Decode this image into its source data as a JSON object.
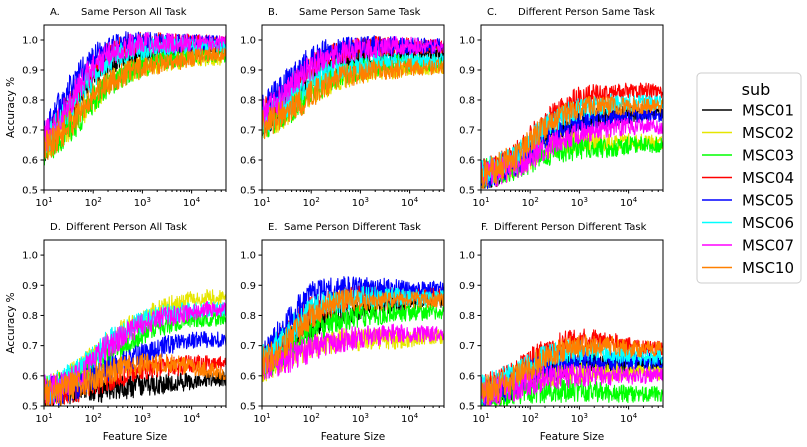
{
  "legend": {
    "title": "sub",
    "entries": [
      {
        "name": "MSC01",
        "color": "#000000"
      },
      {
        "name": "MSC02",
        "color": "#e6e600"
      },
      {
        "name": "MSC03",
        "color": "#00ff00"
      },
      {
        "name": "MSC04",
        "color": "#ff0000"
      },
      {
        "name": "MSC05",
        "color": "#0000ff"
      },
      {
        "name": "MSC06",
        "color": "#00ffff"
      },
      {
        "name": "MSC07",
        "color": "#ff00ff"
      },
      {
        "name": "MSC10",
        "color": "#ff8000"
      }
    ]
  },
  "chart_data": [
    {
      "type": "line",
      "letter": "A.",
      "title": "Same Person All Task",
      "xlabel": "",
      "ylabel": "Accuracy %",
      "xscale": "log",
      "xlim": [
        10,
        50000
      ],
      "ylim": [
        0.5,
        1.05
      ],
      "xticks": [
        "10^1",
        "10^2",
        "10^3",
        "10^4"
      ],
      "yticks": [
        "0.5",
        "0.6",
        "0.7",
        "0.8",
        "0.9",
        "1.0"
      ],
      "x_points": [
        10,
        20,
        50,
        100,
        200,
        500,
        1000,
        2000,
        5000,
        10000,
        20000,
        50000
      ],
      "series": [
        {
          "name": "MSC01",
          "values": [
            0.64,
            0.7,
            0.8,
            0.87,
            0.92,
            0.95,
            0.96,
            0.97,
            0.97,
            0.97,
            0.97,
            0.97
          ]
        },
        {
          "name": "MSC02",
          "values": [
            0.64,
            0.68,
            0.74,
            0.8,
            0.85,
            0.89,
            0.91,
            0.92,
            0.93,
            0.94,
            0.94,
            0.94
          ]
        },
        {
          "name": "MSC03",
          "values": [
            0.63,
            0.67,
            0.73,
            0.8,
            0.85,
            0.89,
            0.91,
            0.93,
            0.94,
            0.95,
            0.95,
            0.95
          ]
        },
        {
          "name": "MSC04",
          "values": [
            0.66,
            0.73,
            0.83,
            0.9,
            0.95,
            0.98,
            0.99,
            0.99,
            0.99,
            0.99,
            0.99,
            0.99
          ]
        },
        {
          "name": "MSC05",
          "values": [
            0.7,
            0.78,
            0.88,
            0.94,
            0.97,
            0.99,
            0.99,
            0.99,
            0.99,
            0.99,
            0.99,
            0.99
          ]
        },
        {
          "name": "MSC06",
          "values": [
            0.66,
            0.72,
            0.82,
            0.88,
            0.93,
            0.96,
            0.97,
            0.98,
            0.98,
            0.98,
            0.98,
            0.98
          ]
        },
        {
          "name": "MSC07",
          "values": [
            0.67,
            0.74,
            0.84,
            0.91,
            0.95,
            0.98,
            0.99,
            0.99,
            0.99,
            0.99,
            0.99,
            0.99
          ]
        },
        {
          "name": "MSC10",
          "values": [
            0.64,
            0.68,
            0.75,
            0.82,
            0.86,
            0.89,
            0.91,
            0.92,
            0.93,
            0.94,
            0.95,
            0.95
          ]
        }
      ]
    },
    {
      "type": "line",
      "letter": "B.",
      "title": "Same Person Same Task",
      "xlabel": "",
      "ylabel": "",
      "xscale": "log",
      "xlim": [
        10,
        50000
      ],
      "ylim": [
        0.5,
        1.05
      ],
      "xticks": [
        "10^1",
        "10^2",
        "10^3",
        "10^4"
      ],
      "yticks": [
        "0.5",
        "0.6",
        "0.7",
        "0.8",
        "0.9",
        "1.0"
      ],
      "x_points": [
        10,
        20,
        50,
        100,
        200,
        500,
        1000,
        2000,
        5000,
        10000,
        20000,
        50000
      ],
      "series": [
        {
          "name": "MSC01",
          "values": [
            0.73,
            0.76,
            0.82,
            0.87,
            0.9,
            0.93,
            0.94,
            0.95,
            0.95,
            0.95,
            0.95,
            0.95
          ]
        },
        {
          "name": "MSC02",
          "values": [
            0.72,
            0.74,
            0.78,
            0.82,
            0.85,
            0.88,
            0.89,
            0.9,
            0.9,
            0.91,
            0.91,
            0.91
          ]
        },
        {
          "name": "MSC03",
          "values": [
            0.72,
            0.74,
            0.78,
            0.82,
            0.86,
            0.89,
            0.9,
            0.91,
            0.92,
            0.92,
            0.92,
            0.92
          ]
        },
        {
          "name": "MSC04",
          "values": [
            0.75,
            0.79,
            0.86,
            0.91,
            0.94,
            0.96,
            0.97,
            0.98,
            0.98,
            0.98,
            0.98,
            0.98
          ]
        },
        {
          "name": "MSC05",
          "values": [
            0.77,
            0.82,
            0.89,
            0.94,
            0.96,
            0.97,
            0.98,
            0.98,
            0.98,
            0.98,
            0.98,
            0.98
          ]
        },
        {
          "name": "MSC06",
          "values": [
            0.73,
            0.76,
            0.82,
            0.86,
            0.89,
            0.91,
            0.92,
            0.93,
            0.93,
            0.93,
            0.93,
            0.93
          ]
        },
        {
          "name": "MSC07",
          "values": [
            0.75,
            0.79,
            0.86,
            0.91,
            0.94,
            0.96,
            0.97,
            0.97,
            0.98,
            0.98,
            0.98,
            0.98
          ]
        },
        {
          "name": "MSC10",
          "values": [
            0.72,
            0.74,
            0.78,
            0.82,
            0.85,
            0.88,
            0.89,
            0.9,
            0.9,
            0.91,
            0.91,
            0.91
          ]
        }
      ]
    },
    {
      "type": "line",
      "letter": "C.",
      "title": "Different Person Same Task",
      "xlabel": "",
      "ylabel": "",
      "xscale": "log",
      "xlim": [
        10,
        50000
      ],
      "ylim": [
        0.5,
        1.05
      ],
      "xticks": [
        "10^1",
        "10^2",
        "10^3",
        "10^4"
      ],
      "yticks": [
        "0.5",
        "0.6",
        "0.7",
        "0.8",
        "0.9",
        "1.0"
      ],
      "x_points": [
        10,
        20,
        50,
        100,
        200,
        500,
        1000,
        2000,
        5000,
        10000,
        20000,
        50000
      ],
      "series": [
        {
          "name": "MSC01",
          "values": [
            0.55,
            0.56,
            0.59,
            0.63,
            0.67,
            0.71,
            0.73,
            0.74,
            0.75,
            0.75,
            0.76,
            0.76
          ]
        },
        {
          "name": "MSC02",
          "values": [
            0.55,
            0.56,
            0.58,
            0.61,
            0.64,
            0.66,
            0.66,
            0.66,
            0.66,
            0.66,
            0.66,
            0.66
          ]
        },
        {
          "name": "MSC03",
          "values": [
            0.55,
            0.56,
            0.58,
            0.6,
            0.62,
            0.63,
            0.64,
            0.64,
            0.64,
            0.65,
            0.65,
            0.65
          ]
        },
        {
          "name": "MSC04",
          "values": [
            0.55,
            0.57,
            0.61,
            0.67,
            0.73,
            0.78,
            0.81,
            0.82,
            0.82,
            0.83,
            0.83,
            0.83
          ]
        },
        {
          "name": "MSC05",
          "values": [
            0.55,
            0.56,
            0.59,
            0.63,
            0.67,
            0.7,
            0.72,
            0.73,
            0.74,
            0.74,
            0.75,
            0.75
          ]
        },
        {
          "name": "MSC06",
          "values": [
            0.55,
            0.57,
            0.6,
            0.66,
            0.71,
            0.75,
            0.77,
            0.78,
            0.79,
            0.79,
            0.79,
            0.79
          ]
        },
        {
          "name": "MSC07",
          "values": [
            0.55,
            0.56,
            0.58,
            0.61,
            0.64,
            0.67,
            0.69,
            0.7,
            0.71,
            0.71,
            0.71,
            0.71
          ]
        },
        {
          "name": "MSC10",
          "values": [
            0.55,
            0.57,
            0.61,
            0.66,
            0.71,
            0.75,
            0.77,
            0.78,
            0.78,
            0.78,
            0.78,
            0.78
          ]
        }
      ]
    },
    {
      "type": "line",
      "letter": "D.",
      "title": "Different Person All Task",
      "xlabel": "Feature Size",
      "ylabel": "Accuracy %",
      "xscale": "log",
      "xlim": [
        10,
        50000
      ],
      "ylim": [
        0.5,
        1.05
      ],
      "xticks": [
        "10^1",
        "10^2",
        "10^3",
        "10^4"
      ],
      "yticks": [
        "0.5",
        "0.6",
        "0.7",
        "0.8",
        "0.9",
        "1.0"
      ],
      "x_points": [
        10,
        20,
        50,
        100,
        200,
        500,
        1000,
        2000,
        5000,
        10000,
        20000,
        50000
      ],
      "series": [
        {
          "name": "MSC01",
          "values": [
            0.54,
            0.54,
            0.55,
            0.55,
            0.56,
            0.56,
            0.57,
            0.57,
            0.58,
            0.58,
            0.59,
            0.59
          ]
        },
        {
          "name": "MSC02",
          "values": [
            0.55,
            0.57,
            0.61,
            0.66,
            0.71,
            0.76,
            0.79,
            0.82,
            0.84,
            0.85,
            0.86,
            0.86
          ]
        },
        {
          "name": "MSC03",
          "values": [
            0.55,
            0.56,
            0.59,
            0.63,
            0.67,
            0.71,
            0.74,
            0.76,
            0.78,
            0.79,
            0.79,
            0.79
          ]
        },
        {
          "name": "MSC04",
          "values": [
            0.54,
            0.55,
            0.56,
            0.58,
            0.59,
            0.61,
            0.62,
            0.63,
            0.63,
            0.64,
            0.64,
            0.64
          ]
        },
        {
          "name": "MSC05",
          "values": [
            0.55,
            0.55,
            0.57,
            0.6,
            0.62,
            0.65,
            0.67,
            0.69,
            0.71,
            0.72,
            0.72,
            0.72
          ]
        },
        {
          "name": "MSC06",
          "values": [
            0.55,
            0.57,
            0.61,
            0.66,
            0.71,
            0.75,
            0.78,
            0.8,
            0.81,
            0.82,
            0.82,
            0.82
          ]
        },
        {
          "name": "MSC07",
          "values": [
            0.55,
            0.56,
            0.6,
            0.65,
            0.7,
            0.74,
            0.77,
            0.79,
            0.8,
            0.81,
            0.82,
            0.82
          ]
        },
        {
          "name": "MSC10",
          "values": [
            0.54,
            0.55,
            0.57,
            0.59,
            0.61,
            0.63,
            0.64,
            0.64,
            0.64,
            0.63,
            0.62,
            0.61
          ]
        }
      ]
    },
    {
      "type": "line",
      "letter": "E.",
      "title": "Same Person Different Task",
      "xlabel": "Feature Size",
      "ylabel": "",
      "xscale": "log",
      "xlim": [
        10,
        50000
      ],
      "ylim": [
        0.5,
        1.05
      ],
      "xticks": [
        "10^1",
        "10^2",
        "10^3",
        "10^4"
      ],
      "yticks": [
        "0.5",
        "0.6",
        "0.7",
        "0.8",
        "0.9",
        "1.0"
      ],
      "x_points": [
        10,
        20,
        50,
        100,
        200,
        500,
        1000,
        2000,
        5000,
        10000,
        20000,
        50000
      ],
      "series": [
        {
          "name": "MSC01",
          "values": [
            0.64,
            0.68,
            0.73,
            0.77,
            0.79,
            0.81,
            0.82,
            0.83,
            0.84,
            0.84,
            0.85,
            0.85
          ]
        },
        {
          "name": "MSC02",
          "values": [
            0.63,
            0.65,
            0.68,
            0.7,
            0.71,
            0.72,
            0.72,
            0.72,
            0.72,
            0.72,
            0.73,
            0.73
          ]
        },
        {
          "name": "MSC03",
          "values": [
            0.63,
            0.66,
            0.71,
            0.75,
            0.77,
            0.79,
            0.8,
            0.8,
            0.81,
            0.81,
            0.81,
            0.81
          ]
        },
        {
          "name": "MSC04",
          "values": [
            0.65,
            0.7,
            0.77,
            0.82,
            0.84,
            0.86,
            0.87,
            0.87,
            0.87,
            0.87,
            0.87,
            0.87
          ]
        },
        {
          "name": "MSC05",
          "values": [
            0.66,
            0.73,
            0.82,
            0.87,
            0.88,
            0.89,
            0.89,
            0.89,
            0.89,
            0.89,
            0.89,
            0.89
          ]
        },
        {
          "name": "MSC06",
          "values": [
            0.65,
            0.7,
            0.77,
            0.82,
            0.84,
            0.85,
            0.86,
            0.86,
            0.86,
            0.86,
            0.86,
            0.86
          ]
        },
        {
          "name": "MSC07",
          "values": [
            0.62,
            0.64,
            0.67,
            0.69,
            0.71,
            0.72,
            0.73,
            0.73,
            0.74,
            0.74,
            0.74,
            0.74
          ]
        },
        {
          "name": "MSC10",
          "values": [
            0.64,
            0.68,
            0.75,
            0.8,
            0.83,
            0.85,
            0.85,
            0.85,
            0.85,
            0.85,
            0.85,
            0.85
          ]
        }
      ]
    },
    {
      "type": "line",
      "letter": "F.",
      "title": "Different Person Different Task",
      "xlabel": "Feature Size",
      "ylabel": "",
      "xscale": "log",
      "xlim": [
        10,
        50000
      ],
      "ylim": [
        0.5,
        1.05
      ],
      "xticks": [
        "10^1",
        "10^2",
        "10^3",
        "10^4"
      ],
      "yticks": [
        "0.5",
        "0.6",
        "0.7",
        "0.8",
        "0.9",
        "1.0"
      ],
      "x_points": [
        10,
        20,
        50,
        100,
        200,
        500,
        1000,
        2000,
        5000,
        10000,
        20000,
        50000
      ],
      "series": [
        {
          "name": "MSC01",
          "values": [
            0.54,
            0.55,
            0.57,
            0.59,
            0.61,
            0.63,
            0.64,
            0.64,
            0.64,
            0.64,
            0.64,
            0.64
          ]
        },
        {
          "name": "MSC02",
          "values": [
            0.54,
            0.55,
            0.57,
            0.59,
            0.6,
            0.61,
            0.61,
            0.61,
            0.61,
            0.61,
            0.61,
            0.61
          ]
        },
        {
          "name": "MSC03",
          "values": [
            0.54,
            0.54,
            0.55,
            0.55,
            0.55,
            0.55,
            0.55,
            0.55,
            0.54,
            0.54,
            0.54,
            0.54
          ]
        },
        {
          "name": "MSC04",
          "values": [
            0.55,
            0.57,
            0.61,
            0.65,
            0.68,
            0.71,
            0.72,
            0.72,
            0.71,
            0.7,
            0.69,
            0.69
          ]
        },
        {
          "name": "MSC05",
          "values": [
            0.54,
            0.55,
            0.58,
            0.61,
            0.63,
            0.65,
            0.66,
            0.66,
            0.65,
            0.65,
            0.65,
            0.65
          ]
        },
        {
          "name": "MSC06",
          "values": [
            0.55,
            0.57,
            0.6,
            0.63,
            0.66,
            0.68,
            0.68,
            0.68,
            0.67,
            0.67,
            0.66,
            0.66
          ]
        },
        {
          "name": "MSC07",
          "values": [
            0.54,
            0.55,
            0.56,
            0.58,
            0.59,
            0.6,
            0.6,
            0.6,
            0.6,
            0.6,
            0.6,
            0.6
          ]
        },
        {
          "name": "MSC10",
          "values": [
            0.55,
            0.56,
            0.59,
            0.63,
            0.66,
            0.69,
            0.7,
            0.7,
            0.7,
            0.69,
            0.69,
            0.69
          ]
        }
      ]
    }
  ]
}
